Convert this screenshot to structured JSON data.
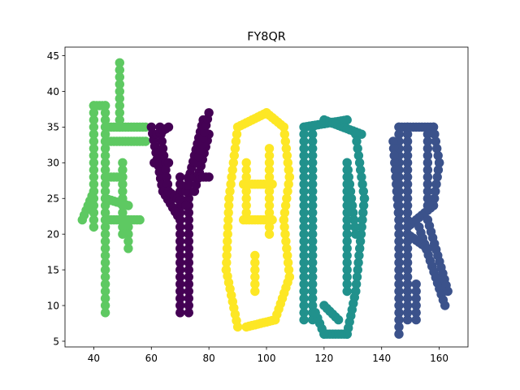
{
  "chart_data": {
    "type": "scatter",
    "title": "FY8QR",
    "xlabel": "",
    "ylabel": "",
    "xlim": [
      30,
      170
    ],
    "ylim": [
      4.2,
      46.2
    ],
    "xticks": [
      40,
      60,
      80,
      100,
      120,
      140,
      160
    ],
    "yticks": [
      5,
      10,
      15,
      20,
      25,
      30,
      35,
      40,
      45
    ],
    "grid": false,
    "legend": "none",
    "marker_radius_units": 1.6,
    "series": [
      {
        "color": "#5ec962",
        "segments": [
          [
            [
              44,
              9
            ],
            [
              44,
              38
            ]
          ],
          [
            [
              49,
              44
            ],
            [
              49,
              35
            ]
          ],
          [
            [
              44,
              35
            ],
            [
              58,
              35
            ]
          ],
          [
            [
              44,
              33
            ],
            [
              58,
              33
            ]
          ],
          [
            [
              44,
              38
            ],
            [
              40,
              38
            ]
          ],
          [
            [
              40,
              38
            ],
            [
              40,
              21
            ]
          ],
          [
            [
              40,
              26
            ],
            [
              36,
              22
            ]
          ],
          [
            [
              44,
              28
            ],
            [
              50,
              28
            ]
          ],
          [
            [
              44,
              25
            ],
            [
              52,
              24
            ]
          ],
          [
            [
              44,
              22
            ],
            [
              56,
              22
            ]
          ],
          [
            [
              52,
              22
            ],
            [
              52,
              18
            ]
          ],
          [
            [
              50,
              30
            ],
            [
              50,
              20
            ]
          ]
        ]
      },
      {
        "color": "#440154",
        "segments": [
          [
            [
              70,
              9
            ],
            [
              70,
              28
            ]
          ],
          [
            [
              73,
              9
            ],
            [
              73,
              28
            ]
          ],
          [
            [
              60,
              35
            ],
            [
              64,
              26
            ]
          ],
          [
            [
              63,
              35
            ],
            [
              66,
              26
            ]
          ],
          [
            [
              64,
              26
            ],
            [
              70,
              22
            ]
          ],
          [
            [
              66,
              26
            ],
            [
              72,
              24
            ]
          ],
          [
            [
              61,
              30
            ],
            [
              66,
              30
            ]
          ],
          [
            [
              72,
              26
            ],
            [
              78,
              36
            ]
          ],
          [
            [
              75,
              26
            ],
            [
              80,
              34
            ]
          ],
          [
            [
              74,
              28
            ],
            [
              80,
              28
            ]
          ],
          [
            [
              76,
              30
            ],
            [
              80,
              37
            ]
          ],
          [
            [
              62,
              34
            ],
            [
              66,
              35
            ]
          ]
        ]
      },
      {
        "color": "#fde725",
        "segments": [
          [
            [
              90,
              7
            ],
            [
              86,
              15
            ]
          ],
          [
            [
              86,
              15
            ],
            [
              87,
              25
            ]
          ],
          [
            [
              87,
              25
            ],
            [
              90,
              35
            ]
          ],
          [
            [
              90,
              35
            ],
            [
              100,
              37
            ]
          ],
          [
            [
              100,
              37
            ],
            [
              106,
              35
            ]
          ],
          [
            [
              106,
              35
            ],
            [
              108,
              28
            ]
          ],
          [
            [
              108,
              28
            ],
            [
              106,
              22
            ]
          ],
          [
            [
              106,
              22
            ],
            [
              108,
              14
            ]
          ],
          [
            [
              108,
              14
            ],
            [
              103,
              8
            ]
          ],
          [
            [
              103,
              8
            ],
            [
              93,
              7
            ]
          ],
          [
            [
              92,
              27
            ],
            [
              102,
              27
            ]
          ],
          [
            [
              92,
              22
            ],
            [
              102,
              22
            ]
          ],
          [
            [
              93,
              30
            ],
            [
              93,
              23
            ]
          ],
          [
            [
              101,
              32
            ],
            [
              101,
              20
            ]
          ],
          [
            [
              96,
              17
            ],
            [
              96,
              12
            ]
          ]
        ]
      },
      {
        "color": "#21918c",
        "segments": [
          [
            [
              113,
              35
            ],
            [
              113,
              8
            ]
          ],
          [
            [
              116,
              35
            ],
            [
              116,
              8
            ]
          ],
          [
            [
              113,
              35
            ],
            [
              128,
              36
            ]
          ],
          [
            [
              120,
              36
            ],
            [
              133,
              34
            ]
          ],
          [
            [
              131,
              34
            ],
            [
              134,
              25
            ]
          ],
          [
            [
              134,
              25
            ],
            [
              131,
              12
            ]
          ],
          [
            [
              131,
              12
            ],
            [
              128,
              6
            ]
          ],
          [
            [
              128,
              6
            ],
            [
              120,
              6
            ]
          ],
          [
            [
              120,
              6
            ],
            [
              117,
              9
            ]
          ],
          [
            [
              120,
              10
            ],
            [
              125,
              8
            ]
          ],
          [
            [
              128,
              30
            ],
            [
              131,
              20
            ]
          ],
          [
            [
              128,
              30
            ],
            [
              128,
              12
            ]
          ]
        ]
      },
      {
        "color": "#3b528b",
        "segments": [
          [
            [
              146,
              35
            ],
            [
              146,
              6
            ]
          ],
          [
            [
              149,
              35
            ],
            [
              149,
              8
            ]
          ],
          [
            [
              144,
              33
            ],
            [
              146,
              22
            ]
          ],
          [
            [
              146,
              35
            ],
            [
              158,
              35
            ]
          ],
          [
            [
              158,
              35
            ],
            [
              160,
              30
            ]
          ],
          [
            [
              160,
              30
            ],
            [
              158,
              24
            ]
          ],
          [
            [
              158,
              24
            ],
            [
              149,
              21
            ]
          ],
          [
            [
              153,
              21
            ],
            [
              162,
              10
            ]
          ],
          [
            [
              156,
              22
            ],
            [
              163,
              12
            ]
          ],
          [
            [
              156,
              34
            ],
            [
              156,
              24
            ]
          ],
          [
            [
              152,
              13
            ],
            [
              152,
              8
            ]
          ],
          [
            [
              149,
              20
            ],
            [
              156,
              18
            ]
          ]
        ]
      }
    ]
  }
}
